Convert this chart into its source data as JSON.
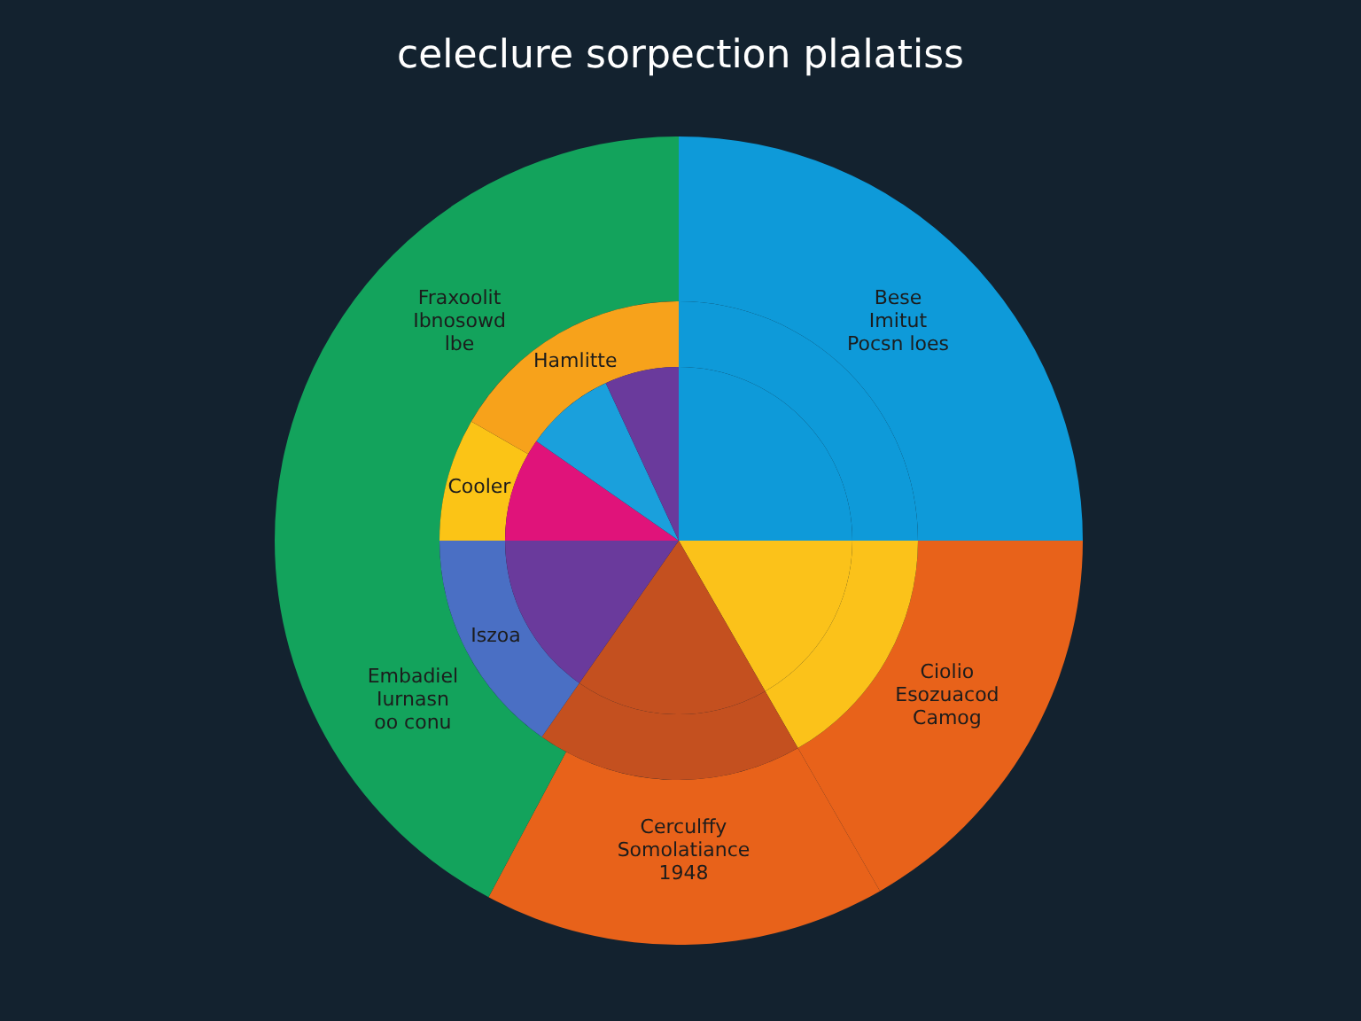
{
  "chart_data": [
    {
      "type": "donut",
      "title": "celeclure sorpection plalatiss",
      "categories": [
        "Bese Imitut Pocsn loes",
        "Ciolio Esozuacod Camog",
        "Cerculffy Somolatiance 1948",
        "Embadiel Iurnasn oo conu",
        "Fraxoolit Ibnosowd lbe"
      ],
      "values": [
        25,
        16.7,
        16.1,
        17.2,
        25
      ],
      "colors": [
        "#0e9ad9",
        "#e8621a",
        "#e8621a",
        "#13a35c",
        "#13a35c"
      ]
    },
    {
      "type": "donut",
      "categories": [
        null,
        null,
        null,
        "Iszoa",
        "Cooler",
        "Hamlitte"
      ],
      "values": [
        25,
        16.7,
        18.0,
        15.3,
        8.3,
        16.7
      ],
      "colors": [
        "#0e9ad9",
        "#fbc21a",
        "#c4501f",
        "#4a6fc4",
        "#fbc416",
        "#f7a21b"
      ]
    },
    {
      "type": "pie",
      "categories": [
        null,
        null,
        null,
        null,
        null,
        null,
        null
      ],
      "values": [
        25,
        16.7,
        18.0,
        15.3,
        9.7,
        8.4,
        6.9
      ],
      "colors": [
        "#0e9ad9",
        "#fbc21a",
        "#c4501f",
        "#6a3a9c",
        "#e0137a",
        "#1aa0dc",
        "#6a3a9c"
      ]
    }
  ]
}
